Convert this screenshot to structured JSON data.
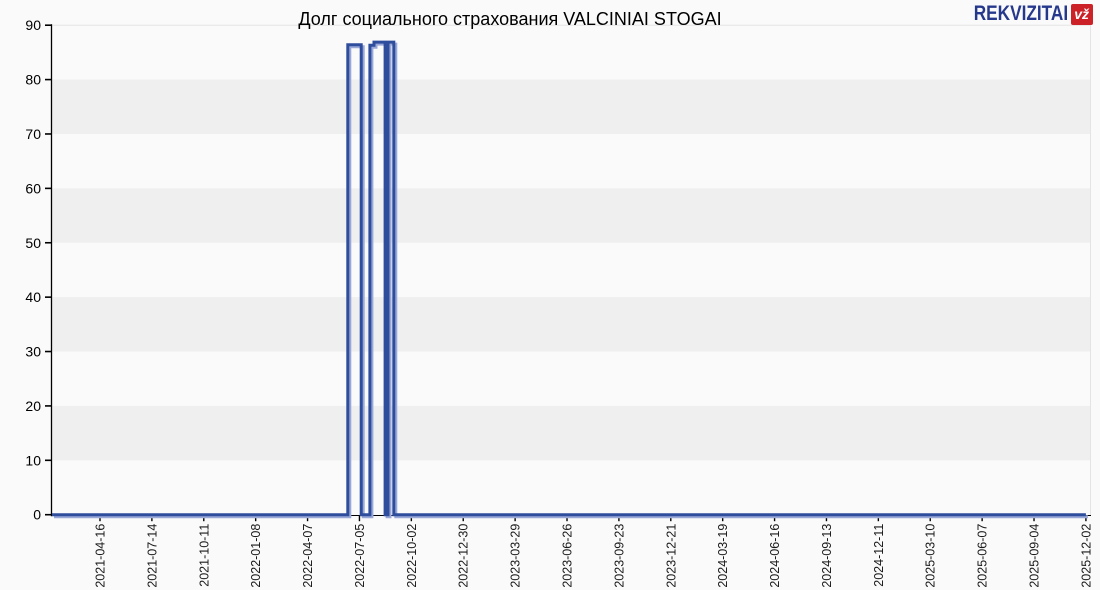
{
  "title": "Долг социального страхования VALCINIAI STOGAI",
  "logo": {
    "text": "REKVIZITAI",
    "badge": "vž",
    "blue": "#26388c",
    "red": "#cb2127"
  },
  "chart_data": {
    "type": "line",
    "step": true,
    "title": "Долг социального страхования VALCINIAI STOGAI",
    "xlabel": "",
    "ylabel": "",
    "ylim": [
      0,
      90
    ],
    "yticks": [
      0,
      10,
      20,
      30,
      40,
      50,
      60,
      70,
      80,
      90
    ],
    "band_pairs": [
      [
        10,
        20
      ],
      [
        30,
        40
      ],
      [
        50,
        60
      ],
      [
        70,
        80
      ]
    ],
    "x_start": "2021-04-16",
    "x_end": "2025-12-02",
    "xticklabels": [
      "2021-04-16",
      "2021-07-14",
      "2021-10-11",
      "2022-01-08",
      "2022-04-07",
      "2022-07-05",
      "2022-10-02",
      "2022-12-30",
      "2023-03-29",
      "2023-06-26",
      "2023-09-23",
      "2023-12-21",
      "2024-03-19",
      "2024-06-16",
      "2024-09-13",
      "2024-12-11",
      "2025-03-10",
      "2025-06-07",
      "2025-09-04",
      "2025-12-02"
    ],
    "series": [
      {
        "name": "debt",
        "points": [
          [
            "2022-06-15",
            0
          ],
          [
            "2022-06-15",
            86.4
          ],
          [
            "2022-07-08",
            86.4
          ],
          [
            "2022-07-08",
            0
          ],
          [
            "2022-07-23",
            0
          ],
          [
            "2022-07-23",
            86.3
          ],
          [
            "2022-07-30",
            86.3
          ],
          [
            "2022-07-30",
            86.9
          ],
          [
            "2022-08-18",
            86.9
          ],
          [
            "2022-08-18",
            0
          ],
          [
            "2022-08-23",
            0
          ],
          [
            "2022-08-23",
            86.9
          ],
          [
            "2022-09-02",
            86.9
          ],
          [
            "2022-09-02",
            0
          ],
          [
            "2025-12-02",
            0
          ]
        ]
      }
    ],
    "colors": {
      "line": "#2e4d9c",
      "line_shadow": "#9aa8d8",
      "band": "#efefef",
      "background": "#fafafa",
      "axis": "#000000",
      "plot_border": "#e4e4e4",
      "tick_label": "#1a1a1a"
    },
    "legend": null,
    "grid": "horizontal-bands"
  }
}
